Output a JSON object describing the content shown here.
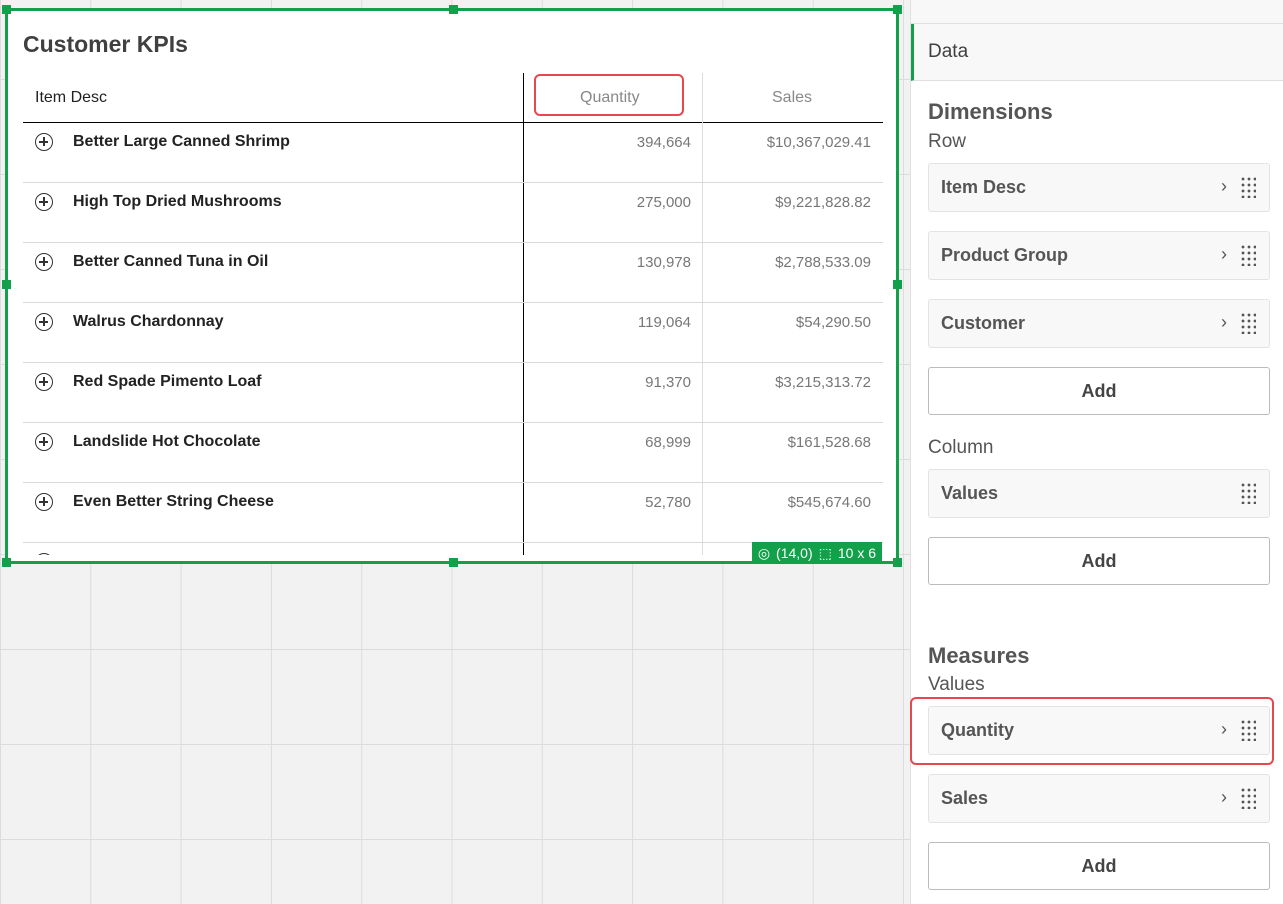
{
  "chart": {
    "title": "Customer KPIs",
    "headers": {
      "item": "Item Desc",
      "quantity": "Quantity",
      "sales": "Sales"
    },
    "rows": [
      {
        "item": "Better Large Canned Shrimp",
        "quantity": "394,664",
        "sales": "$10,367,029.41"
      },
      {
        "item": "High Top Dried Mushrooms",
        "quantity": "275,000",
        "sales": "$9,221,828.82"
      },
      {
        "item": "Better Canned Tuna in Oil",
        "quantity": "130,978",
        "sales": "$2,788,533.09"
      },
      {
        "item": "Walrus Chardonnay",
        "quantity": "119,064",
        "sales": "$54,290.50"
      },
      {
        "item": "Red Spade Pimento Loaf",
        "quantity": "91,370",
        "sales": "$3,215,313.72"
      },
      {
        "item": "Landslide Hot Chocolate",
        "quantity": "68,999",
        "sales": "$161,528.68"
      },
      {
        "item": "Even Better String Cheese",
        "quantity": "52,780",
        "sales": "$545,674.60"
      }
    ],
    "badge": {
      "position": "(14,0)",
      "size": "10 x 6"
    },
    "accent": "#13a04a",
    "highlight": "#e5484d"
  },
  "panel": {
    "tab": "Data",
    "dimensions": "Dimensions",
    "row": "Row",
    "row_fields": [
      "Item Desc",
      "Product Group",
      "Customer"
    ],
    "column": "Column",
    "column_fields": [
      "Values"
    ],
    "measures": "Measures",
    "values": "Values",
    "measure_fields": [
      "Quantity",
      "Sales"
    ],
    "add": "Add"
  }
}
